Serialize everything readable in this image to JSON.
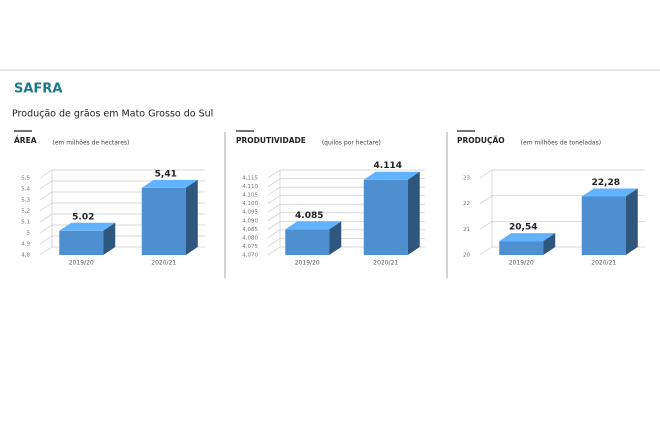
{
  "header": {
    "title": "SAFRA",
    "subtitle": "Produção de grãos em Mato Grosso do Sul"
  },
  "chart_data": [
    {
      "type": "bar",
      "title": "ÁREA",
      "subtitle": "(em milhões de hectares)",
      "categories": [
        "2019/20",
        "2020/21"
      ],
      "values": [
        5.02,
        5.41
      ],
      "value_labels": [
        "5.02",
        "5,41"
      ],
      "color": "#4e8fd0",
      "ylim": [
        4.8,
        5.5
      ],
      "yticks": [
        {
          "value": 4.8,
          "label": "4,8"
        },
        {
          "value": 4.9,
          "label": "4,9"
        },
        5,
        {
          "value": 5.1,
          "label": "5,1"
        },
        {
          "value": 5.2,
          "label": "5,2"
        },
        {
          "value": 5.3,
          "label": "5,3"
        },
        {
          "value": 5.4,
          "label": "5,4"
        },
        {
          "value": 5.5,
          "label": "5,5"
        }
      ],
      "grid": true
    },
    {
      "type": "bar",
      "title": "PRODUTIVIDADE",
      "subtitle": "(quilos por hectare)",
      "categories": [
        "2019/20",
        "2020/21"
      ],
      "values": [
        4.085,
        4.114
      ],
      "color": "#4e8fd0",
      "ylim": [
        4.07,
        4.115
      ],
      "yticks": [
        {
          "value": 4.07,
          "label": "4,070"
        },
        {
          "value": 4.075,
          "label": "4,075"
        },
        {
          "value": 4.08,
          "label": "4,080"
        },
        {
          "value": 4.085,
          "label": "4,085"
        },
        {
          "value": 4.09,
          "label": "4,090"
        },
        {
          "value": 4.095,
          "label": "4,095"
        },
        {
          "value": 4.1,
          "label": "4,100"
        },
        {
          "value": 4.105,
          "label": "4,105"
        },
        {
          "value": 4.11,
          "label": "4,110"
        },
        {
          "value": 4.115,
          "label": "4,115"
        }
      ],
      "grid": true
    },
    {
      "type": "bar",
      "title": "PRODUÇÃO",
      "subtitle": "(em milhões de toneladas)",
      "categories": [
        "2019/20",
        "2020/21"
      ],
      "values": [
        20.54,
        22.28
      ],
      "value_labels": [
        "20,54",
        "22,28"
      ],
      "color": "#4e8fd0",
      "ylim": [
        20,
        23
      ],
      "yticks": [
        20,
        21,
        22,
        23
      ],
      "grid": true
    }
  ]
}
